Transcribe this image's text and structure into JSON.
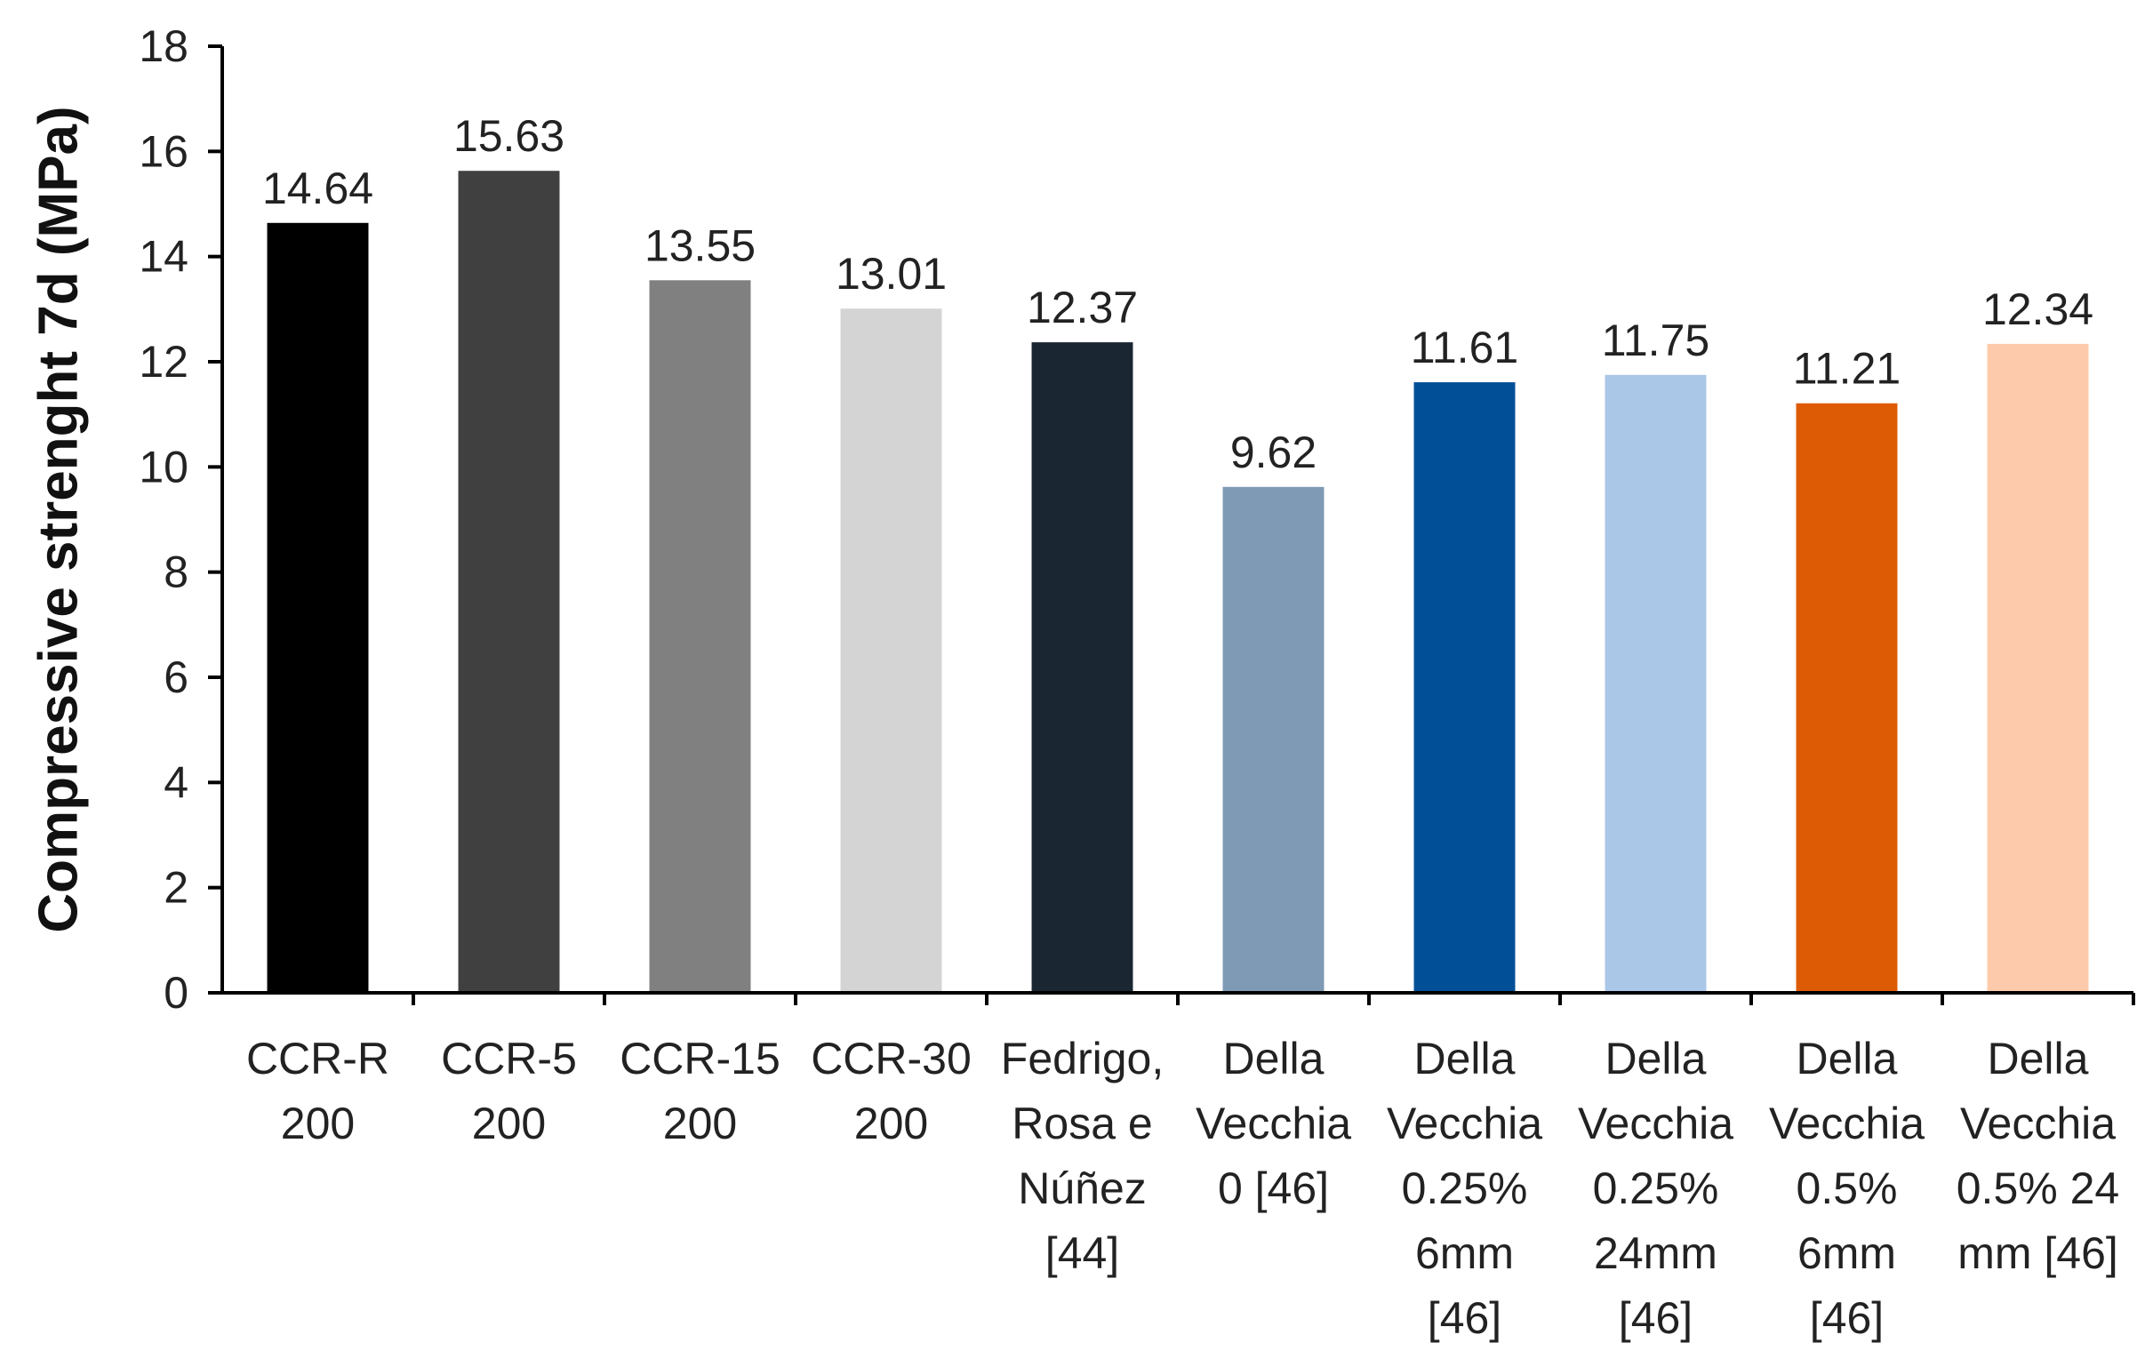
{
  "chart_data": {
    "type": "bar",
    "title": "",
    "xlabel": "",
    "ylabel": "Compressive strenght 7d (MPa)",
    "ylim": [
      0,
      18
    ],
    "yticks": [
      0,
      2,
      4,
      6,
      8,
      10,
      12,
      14,
      16,
      18
    ],
    "grid": false,
    "legend": "none",
    "categories": [
      [
        "CCR-R",
        "200"
      ],
      [
        "CCR-5",
        "200"
      ],
      [
        "CCR-15",
        "200"
      ],
      [
        "CCR-30",
        "200"
      ],
      [
        "Fedrigo,",
        "Rosa e",
        "Núñez",
        "[44]"
      ],
      [
        "Della",
        "Vecchia",
        "0 [46]"
      ],
      [
        "Della",
        "Vecchia",
        "0.25%",
        "6mm",
        "[46]"
      ],
      [
        "Della",
        "Vecchia",
        "0.25%",
        "24mm",
        "[46]"
      ],
      [
        "Della",
        "Vecchia",
        "0.5%",
        "6mm",
        "[46]"
      ],
      [
        "Della",
        "Vecchia",
        "0.5% 24",
        "mm [46]"
      ]
    ],
    "values": [
      14.64,
      15.63,
      13.55,
      13.01,
      12.37,
      9.62,
      11.61,
      11.75,
      11.21,
      12.34
    ],
    "value_labels": [
      "14.64",
      "15.63",
      "13.55",
      "13.01",
      "12.37",
      "9.62",
      "11.61",
      "11.75",
      "11.21",
      "12.34"
    ],
    "colors": [
      "#000000",
      "#404040",
      "#808080",
      "#d4d4d4",
      "#1b2633",
      "#7e9ab5",
      "#004f97",
      "#abc7e7",
      "#de5b06",
      "#fdcbab"
    ]
  }
}
